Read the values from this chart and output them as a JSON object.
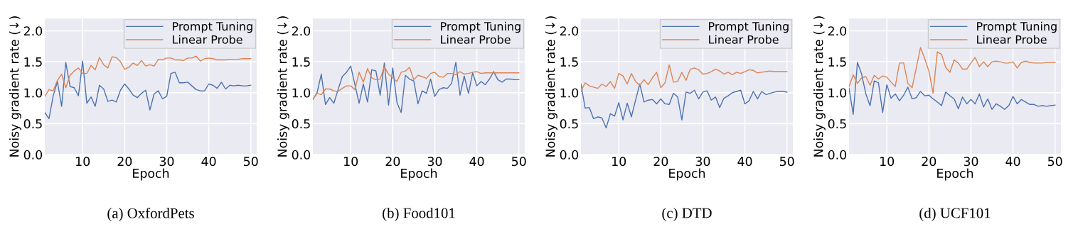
{
  "chart_data": [
    {
      "type": "line",
      "xlabel": "Epoch",
      "ylabel": "Noisy gradient rate (↓)",
      "annotations": [
        "(a) OxfordPets"
      ],
      "xlim": [
        1,
        51.4
      ],
      "ylim": [
        0,
        2.2
      ],
      "xticks": [
        10,
        20,
        30,
        40,
        50
      ],
      "yticks": [
        {
          "value": 0,
          "label": "0.0"
        },
        {
          "value": 0.5,
          "label": "0.5"
        },
        {
          "value": 1,
          "label": "1.0"
        },
        {
          "value": 1.5,
          "label": "1.5"
        },
        {
          "value": 2,
          "label": "2.0"
        }
      ],
      "grid": true,
      "legend": "top right",
      "marker": "none",
      "line_style": "solid",
      "x": [
        1,
        2,
        3,
        4,
        5,
        6,
        7,
        8,
        9,
        10,
        11,
        12,
        13,
        14,
        15,
        16,
        17,
        18,
        19,
        20,
        21,
        22,
        23,
        24,
        25,
        26,
        27,
        28,
        29,
        30,
        31,
        32,
        33,
        34,
        35,
        36,
        37,
        38,
        39,
        40,
        41,
        42,
        43,
        44,
        45,
        46,
        47,
        48,
        49,
        50
      ],
      "series": [
        {
          "name": "Prompt Tuning",
          "color": "#4c72b0",
          "values": [
            0.68,
            0.58,
            0.95,
            1.18,
            0.78,
            1.49,
            1.1,
            1.08,
            0.95,
            1.51,
            0.83,
            0.93,
            0.78,
            1.12,
            1.06,
            0.86,
            0.88,
            0.85,
            1.04,
            1.14,
            1.06,
            0.96,
            0.92,
            0.99,
            1.04,
            0.72,
            0.98,
            1.03,
            0.9,
            0.94,
            1.31,
            1.33,
            1.16,
            1.16,
            1.17,
            1.11,
            1.05,
            1.03,
            1.03,
            1.14,
            1.12,
            1.07,
            1.17,
            1.06,
            1.12,
            1.11,
            1.12,
            1.11,
            1.11,
            1.12
          ]
        },
        {
          "name": "Linear Probe",
          "color": "#dd8452",
          "values": [
            0.94,
            1.05,
            1.03,
            1.2,
            1.3,
            1.08,
            1.28,
            1.35,
            1.4,
            1.31,
            1.31,
            1.44,
            1.37,
            1.57,
            1.45,
            1.4,
            1.58,
            1.57,
            1.5,
            1.38,
            1.41,
            1.48,
            1.44,
            1.52,
            1.43,
            1.45,
            1.43,
            1.54,
            1.53,
            1.56,
            1.56,
            1.53,
            1.53,
            1.52,
            1.56,
            1.56,
            1.59,
            1.51,
            1.55,
            1.56,
            1.55,
            1.53,
            1.53,
            1.53,
            1.54,
            1.54,
            1.54,
            1.55,
            1.55,
            1.55
          ]
        }
      ]
    },
    {
      "type": "line",
      "xlabel": "Epoch",
      "ylabel": "Noisy gradient rate (↓)",
      "annotations": [
        "(b) Food101"
      ],
      "xlim": [
        1,
        51.4
      ],
      "ylim": [
        0,
        2.2
      ],
      "xticks": [
        10,
        20,
        30,
        40,
        50
      ],
      "yticks": [
        {
          "value": 0,
          "label": "0.0"
        },
        {
          "value": 0.5,
          "label": "0.5"
        },
        {
          "value": 1,
          "label": "1.0"
        },
        {
          "value": 1.5,
          "label": "1.5"
        },
        {
          "value": 2,
          "label": "2.0"
        }
      ],
      "grid": true,
      "legend": "top right",
      "marker": "none",
      "line_style": "solid",
      "x": [
        1,
        2,
        3,
        4,
        5,
        6,
        7,
        8,
        9,
        10,
        11,
        12,
        13,
        14,
        15,
        16,
        17,
        18,
        19,
        20,
        21,
        22,
        23,
        24,
        25,
        26,
        27,
        28,
        29,
        30,
        31,
        32,
        33,
        34,
        35,
        36,
        37,
        38,
        39,
        40,
        41,
        42,
        43,
        44,
        45,
        46,
        47,
        48,
        49,
        50
      ],
      "series": [
        {
          "name": "Prompt Tuning",
          "color": "#4c72b0",
          "values": [
            0.89,
            1.0,
            1.3,
            0.81,
            0.92,
            0.83,
            1.05,
            1.26,
            1.33,
            1.43,
            1.13,
            0.83,
            1.14,
            0.85,
            1.37,
            1.35,
            0.96,
            1.48,
            0.8,
            1.4,
            0.84,
            0.68,
            1.28,
            1.22,
            1.19,
            0.82,
            1.03,
            0.99,
            1.22,
            0.94,
            1.05,
            1.08,
            1.07,
            1.15,
            1.49,
            0.96,
            1.27,
            0.99,
            1.32,
            1.11,
            1.18,
            1.13,
            1.22,
            1.34,
            1.21,
            1.17,
            1.22,
            1.22,
            1.21,
            1.21
          ]
        },
        {
          "name": "Linear Probe",
          "color": "#dd8452",
          "values": [
            0.89,
            0.99,
            0.97,
            1.06,
            1.06,
            1.03,
            1.02,
            1.07,
            1.11,
            1.11,
            1.05,
            1.33,
            1.17,
            1.39,
            1.24,
            1.21,
            1.22,
            1.42,
            1.3,
            1.24,
            1.18,
            1.33,
            1.35,
            1.41,
            1.21,
            1.28,
            1.26,
            1.23,
            1.31,
            1.33,
            1.26,
            1.25,
            1.31,
            1.31,
            1.29,
            1.34,
            1.3,
            1.31,
            1.33,
            1.34,
            1.31,
            1.32,
            1.32,
            1.32,
            1.32,
            1.32,
            1.32,
            1.32,
            1.32,
            1.32
          ]
        }
      ]
    },
    {
      "type": "line",
      "xlabel": "Epoch",
      "ylabel": "Noisy gradient rate (↓)",
      "annotations": [
        "(c) DTD"
      ],
      "xlim": [
        1,
        51.4
      ],
      "ylim": [
        0,
        2.2
      ],
      "xticks": [
        10,
        20,
        30,
        40,
        50
      ],
      "yticks": [
        {
          "value": 0,
          "label": "0.0"
        },
        {
          "value": 0.5,
          "label": "0.5"
        },
        {
          "value": 1,
          "label": "1.0"
        },
        {
          "value": 1.5,
          "label": "1.5"
        },
        {
          "value": 2,
          "label": "2.0"
        }
      ],
      "grid": true,
      "legend": "top right",
      "marker": "none",
      "line_style": "solid",
      "x": [
        1,
        2,
        3,
        4,
        5,
        6,
        7,
        8,
        9,
        10,
        11,
        12,
        13,
        14,
        15,
        16,
        17,
        18,
        19,
        20,
        21,
        22,
        23,
        24,
        25,
        26,
        27,
        28,
        29,
        30,
        31,
        32,
        33,
        34,
        35,
        36,
        37,
        38,
        39,
        40,
        41,
        42,
        43,
        44,
        45,
        46,
        47,
        48,
        49,
        50
      ],
      "series": [
        {
          "name": "Prompt Tuning",
          "color": "#4c72b0",
          "values": [
            1.14,
            0.75,
            0.76,
            0.58,
            0.61,
            0.59,
            0.43,
            0.66,
            0.62,
            0.84,
            0.56,
            0.83,
            0.61,
            0.88,
            1.14,
            0.85,
            0.88,
            0.89,
            0.82,
            0.9,
            0.82,
            0.81,
            0.99,
            0.93,
            0.56,
            1.01,
            0.99,
            1.04,
            0.9,
            1.01,
            1.03,
            0.88,
            0.93,
            0.76,
            0.91,
            0.95,
            1.0,
            1.02,
            1.04,
            0.82,
            0.87,
            1.02,
            0.9,
            1.02,
            0.97,
            0.99,
            1.01,
            1.02,
            1.02,
            1.01
          ]
        },
        {
          "name": "Linear Probe",
          "color": "#dd8452",
          "values": [
            1.02,
            1.16,
            1.11,
            1.09,
            1.07,
            1.14,
            1.1,
            1.18,
            1.07,
            1.31,
            1.27,
            1.14,
            1.31,
            1.18,
            1.12,
            1.21,
            1.13,
            1.24,
            1.33,
            1.08,
            1.16,
            1.45,
            1.17,
            1.18,
            1.33,
            1.2,
            1.38,
            1.4,
            1.37,
            1.3,
            1.31,
            1.34,
            1.38,
            1.35,
            1.3,
            1.33,
            1.29,
            1.33,
            1.31,
            1.34,
            1.37,
            1.36,
            1.32,
            1.33,
            1.34,
            1.35,
            1.34,
            1.34,
            1.34,
            1.34
          ]
        }
      ]
    },
    {
      "type": "line",
      "xlabel": "Epoch",
      "ylabel": "Noisy gradient rate (↓)",
      "annotations": [
        "(d) UCF101"
      ],
      "xlim": [
        1,
        51.4
      ],
      "ylim": [
        0,
        2.2
      ],
      "xticks": [
        10,
        20,
        30,
        40,
        50
      ],
      "yticks": [
        {
          "value": 0,
          "label": "0.0"
        },
        {
          "value": 0.5,
          "label": "0.5"
        },
        {
          "value": 1,
          "label": "1.0"
        },
        {
          "value": 1.5,
          "label": "1.5"
        },
        {
          "value": 2,
          "label": "2.0"
        }
      ],
      "grid": true,
      "legend": "top right",
      "marker": "none",
      "line_style": "solid",
      "x": [
        1,
        2,
        3,
        4,
        5,
        6,
        7,
        8,
        9,
        10,
        11,
        12,
        13,
        14,
        15,
        16,
        17,
        18,
        19,
        20,
        21,
        22,
        23,
        24,
        25,
        26,
        27,
        28,
        29,
        30,
        31,
        32,
        33,
        34,
        35,
        36,
        37,
        38,
        39,
        40,
        41,
        42,
        43,
        44,
        45,
        46,
        47,
        48,
        49,
        50
      ],
      "series": [
        {
          "name": "Prompt Tuning",
          "color": "#4c72b0",
          "values": [
            1.07,
            0.65,
            1.49,
            1.3,
            0.98,
            0.79,
            1.19,
            1.16,
            0.68,
            1.13,
            0.91,
            0.98,
            0.87,
            0.96,
            1.09,
            0.9,
            0.92,
            1.02,
            0.95,
            0.96,
            0.9,
            0.85,
            0.79,
            1.01,
            0.95,
            0.9,
            0.74,
            0.93,
            0.82,
            0.89,
            0.82,
            0.98,
            0.77,
            0.9,
            0.73,
            0.82,
            0.78,
            0.73,
            0.79,
            0.94,
            0.82,
            0.89,
            0.85,
            0.81,
            0.81,
            0.78,
            0.79,
            0.78,
            0.79,
            0.8
          ]
        },
        {
          "name": "Linear Probe",
          "color": "#dd8452",
          "values": [
            1.1,
            1.29,
            1.15,
            1.24,
            1.26,
            1.12,
            1.28,
            1.22,
            1.27,
            1.25,
            1.17,
            1.1,
            1.48,
            1.48,
            1.15,
            1.08,
            1.4,
            1.73,
            1.55,
            1.35,
            0.99,
            1.66,
            1.62,
            1.41,
            1.33,
            1.53,
            1.48,
            1.38,
            1.38,
            1.48,
            1.57,
            1.42,
            1.5,
            1.42,
            1.5,
            1.51,
            1.5,
            1.48,
            1.48,
            1.5,
            1.4,
            1.49,
            1.51,
            1.49,
            1.48,
            1.48,
            1.48,
            1.49,
            1.49,
            1.49
          ]
        }
      ]
    }
  ]
}
